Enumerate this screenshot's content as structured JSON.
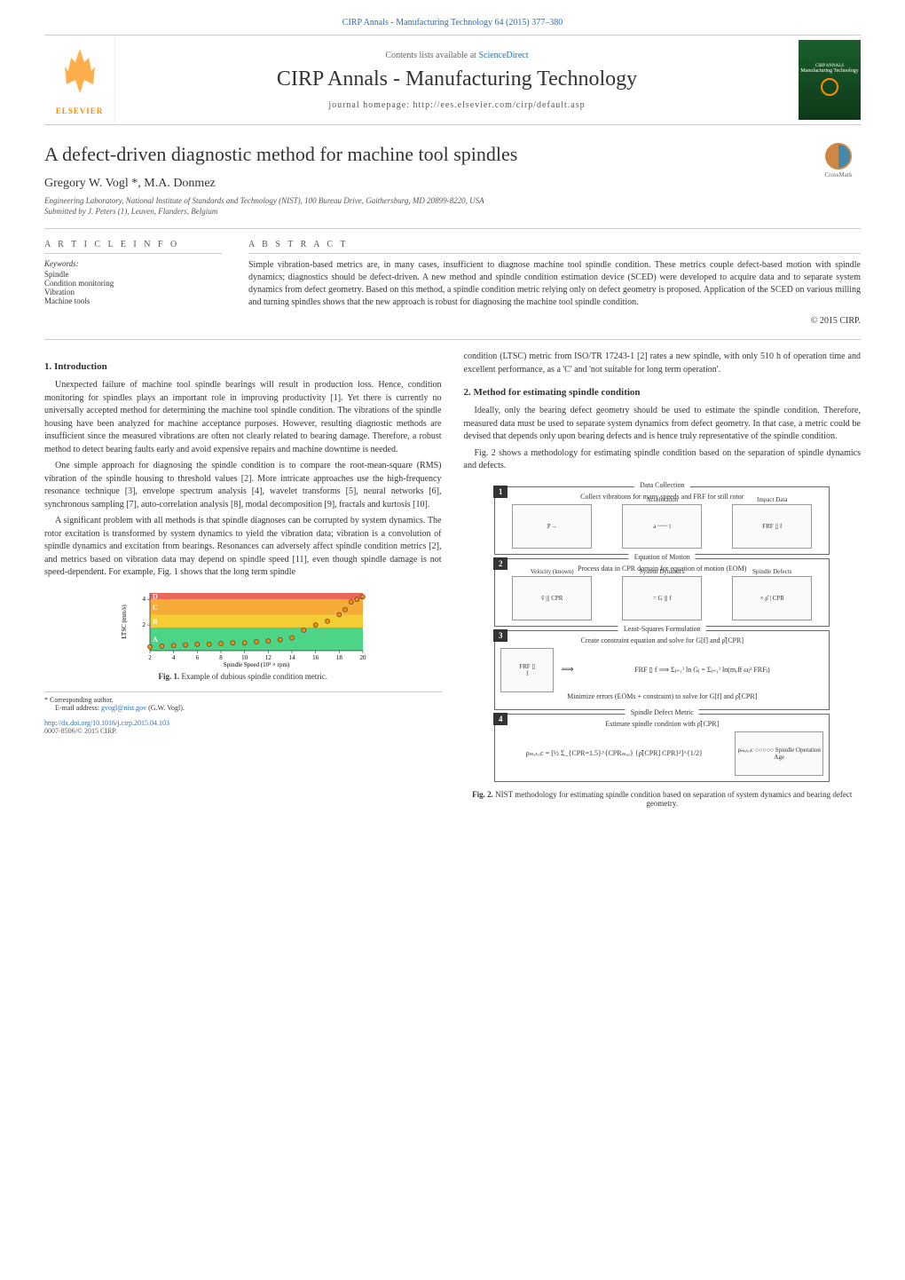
{
  "header": {
    "top_link": "CIRP Annals - Manufacturing Technology 64 (2015) 377–380",
    "contents_line_prefix": "Contents lists available at ",
    "contents_line_link": "ScienceDirect",
    "journal_title": "CIRP Annals - Manufacturing Technology",
    "homepage": "journal homepage: http://ees.elsevier.com/cirp/default.asp",
    "elsevier_text": "ELSEVIER",
    "cover_text1": "CIRP ANNALS",
    "cover_text2": "Manufacturing Technology"
  },
  "article": {
    "title": "A defect-driven diagnostic method for machine tool spindles",
    "authors": "Gregory W. Vogl *, M.A. Donmez",
    "affiliation": "Engineering Laboratory, National Institute of Standards and Technology (NIST), 100 Bureau Drive, Gaithersburg, MD 20899-8220, USA",
    "submitted": "Submitted by J. Peters (1), Leuven, Flanders, Belgium",
    "crossmark_text": "CrossMark"
  },
  "info": {
    "heading": "A R T I C L E  I N F O",
    "keywords_label": "Keywords:",
    "keywords": [
      "Spindle",
      "Condition monitoring",
      "Vibration",
      "Machine tools"
    ]
  },
  "abstract": {
    "heading": "A B S T R A C T",
    "text": "Simple vibration-based metrics are, in many cases, insufficient to diagnose machine tool spindle condition. These metrics couple defect-based motion with spindle dynamics; diagnostics should be defect-driven. A new method and spindle condition estimation device (SCED) were developed to acquire data and to separate system dynamics from defect geometry. Based on this method, a spindle condition metric relying only on defect geometry is proposed. Application of the SCED on various milling and turning spindles shows that the new approach is robust for diagnosing the machine tool spindle condition.",
    "copyright": "© 2015 CIRP."
  },
  "sections": {
    "s1_heading": "1. Introduction",
    "s1_p1": "Unexpected failure of machine tool spindle bearings will result in production loss. Hence, condition monitoring for spindles plays an important role in improving productivity [1]. Yet there is currently no universally accepted method for determining the machine tool spindle condition. The vibrations of the spindle housing have been analyzed for machine acceptance purposes. However, resulting diagnostic methods are insufficient since the measured vibrations are often not clearly related to bearing damage. Therefore, a robust method to detect bearing faults early and avoid expensive repairs and machine downtime is needed.",
    "s1_p2": "One simple approach for diagnosing the spindle condition is to compare the root-mean-square (RMS) vibration of the spindle housing to threshold values [2]. More intricate approaches use the high-frequency resonance technique [3], envelope spectrum analysis [4], wavelet transforms [5], neural networks [6], synchronous sampling [7], auto-correlation analysis [8], modal decomposition [9], fractals and kurtosis [10].",
    "s1_p3": "A significant problem with all methods is that spindle diagnoses can be corrupted by system dynamics. The rotor excitation is transformed by system dynamics to yield the vibration data; vibration is a convolution of spindle dynamics and excitation from bearings. Resonances can adversely affect spindle condition metrics [2], and metrics based on vibration data may depend on spindle speed [11], even though spindle damage is not speed-dependent. For example, Fig. 1 shows that the long term spindle",
    "s1_p4_right": "condition (LTSC) metric from ISO/TR 17243-1 [2] rates a new spindle, with only 510 h of operation time and excellent performance, as a 'C' and 'not suitable for long term operation'.",
    "s2_heading": "2. Method for estimating spindle condition",
    "s2_p1": "Ideally, only the bearing defect geometry should be used to estimate the spindle condition. Therefore, measured data must be used to separate system dynamics from defect geometry. In that case, a metric could be devised that depends only upon bearing defects and is hence truly representative of the spindle condition.",
    "s2_p2": "Fig. 2 shows a methodology for estimating spindle condition based on the separation of spindle dynamics and defects."
  },
  "fig1": {
    "caption_bold": "Fig. 1.",
    "caption_text": " Example of dubious spindle condition metric.",
    "ylabel": "LTSC (mm/s)",
    "xlabel": "Spindle Speed (10³ × rpm)",
    "x_ticks": [
      2,
      4,
      6,
      8,
      10,
      12,
      14,
      16,
      18,
      20
    ],
    "y_ticks": [
      2,
      4
    ],
    "xlim": [
      2,
      20
    ],
    "ylim": [
      0,
      4.5
    ],
    "bands": [
      {
        "y": 4,
        "h": 0.5,
        "color": "#e74c3c",
        "label": "D"
      },
      {
        "y": 2.8,
        "h": 1.2,
        "color": "#f39c12",
        "label": "C"
      },
      {
        "y": 1.8,
        "h": 1.0,
        "color": "#f1c40f",
        "label": "B"
      },
      {
        "y": 0,
        "h": 1.8,
        "color": "#2ecc71",
        "label": "A"
      }
    ],
    "points": [
      {
        "x": 2,
        "y": 0.3
      },
      {
        "x": 3,
        "y": 0.35
      },
      {
        "x": 4,
        "y": 0.4
      },
      {
        "x": 5,
        "y": 0.45
      },
      {
        "x": 6,
        "y": 0.5
      },
      {
        "x": 7,
        "y": 0.5
      },
      {
        "x": 8,
        "y": 0.55
      },
      {
        "x": 9,
        "y": 0.6
      },
      {
        "x": 10,
        "y": 0.6
      },
      {
        "x": 11,
        "y": 0.7
      },
      {
        "x": 12,
        "y": 0.75
      },
      {
        "x": 13,
        "y": 0.85
      },
      {
        "x": 14,
        "y": 1.0
      },
      {
        "x": 15,
        "y": 1.6
      },
      {
        "x": 16,
        "y": 2.0
      },
      {
        "x": 17,
        "y": 2.3
      },
      {
        "x": 18,
        "y": 2.8
      },
      {
        "x": 18.5,
        "y": 3.2
      },
      {
        "x": 19,
        "y": 3.8
      },
      {
        "x": 19.5,
        "y": 4.0
      },
      {
        "x": 20,
        "y": 4.2
      }
    ],
    "marker_color": "#ff8c00",
    "marker_stroke": "#333"
  },
  "fig2": {
    "caption_bold": "Fig. 2.",
    "caption_text": " NIST methodology for estimating spindle condition based on separation of system dynamics and bearing defect geometry.",
    "sections": [
      {
        "num": "1",
        "label": "Data Collection",
        "text": "Collect vibrations for many speeds and FRF for still rotor",
        "boxes": [
          {
            "label": "",
            "content": "P→"
          },
          {
            "label": "Acceleration",
            "content": "a ~~~ t"
          },
          {
            "label": "Impact Data",
            "content": "FRF ▯ f"
          }
        ]
      },
      {
        "num": "2",
        "label": "Equation of Motion",
        "text": "Process data in CPR domain for equation of motion (EOM)",
        "boxes": [
          {
            "label": "Velocity (known)",
            "content": "v̂ ||| CPR"
          },
          {
            "label": "System Dynamics",
            "content": "= G ||| f"
          },
          {
            "label": "Spindle Defects",
            "content": "× ρ̂ | CPR"
          }
        ]
      },
      {
        "num": "3",
        "label": "Least-Squares Formulation",
        "text": "Create constraint equation and solve for G[f] and ρ̂[CPR]",
        "formula": "FRF ▯ f  ⟹  Σⱼ₌₁ᴶ ln Gⱼ = Σⱼ₌₁ᴶ ln(mₑff ωⱼ³ FRFⱼ)",
        "text2": "Minimize errors (EOMs + constraint) to solve for G[f] and ρ̂[CPR]"
      },
      {
        "num": "4",
        "label": "Spindle Defect Metric",
        "text": "Estimate spindle condition with ρ̂[CPR]",
        "formula": "ρₘₑₜᵣᵢc = [½ Σ_{CPR=1.5}^{CPRₘₐₓ} {ρ̂[CPR] CPR}²]^{1/2}",
        "box_right": {
          "label": "",
          "content": "ρₘₑₜᵣᵢc ○○○○○ Spindle Operation Age"
        }
      }
    ]
  },
  "footer": {
    "corresponding": "* Corresponding author.",
    "email_label": "E-mail address: ",
    "email": "gvogl@nist.gov",
    "email_suffix": " (G.W. Vogl).",
    "doi": "http://dx.doi.org/10.1016/j.cirp.2015.04.103",
    "issn": "0007-8506/© 2015 CIRP."
  },
  "colors": {
    "link": "#2a6eb8",
    "elsevier": "#ff8c00",
    "text": "#333333",
    "border": "#cccccc"
  }
}
